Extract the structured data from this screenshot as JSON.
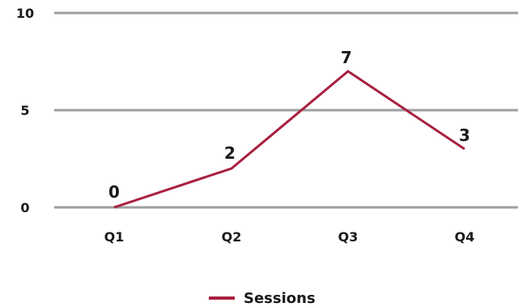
{
  "chart_data": {
    "type": "line",
    "categories": [
      "Q1",
      "Q2",
      "Q3",
      "Q4"
    ],
    "series": [
      {
        "name": "Sessions",
        "values": [
          0,
          2,
          7,
          3
        ],
        "color": "#a8203f"
      }
    ],
    "ylim": [
      0,
      10
    ],
    "yticks": [
      "0",
      "5",
      "10"
    ],
    "data_labels": [
      "0",
      "2",
      "7",
      "3"
    ],
    "grid": true,
    "gridline_color": "#9e9e9e",
    "legend_position": "bottom-center"
  }
}
